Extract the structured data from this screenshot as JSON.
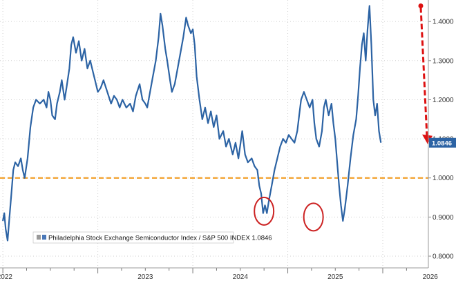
{
  "chart_data": {
    "type": "line",
    "title": "",
    "xlabel": "",
    "ylabel": "",
    "x_tick_labels": [
      "2022",
      "2023",
      "2024",
      "2025",
      "2026"
    ],
    "y_tick_labels": [
      "0.8000",
      "0.9000",
      "1.0000",
      "1.1000",
      "1.2000",
      "1.3000",
      "1.4000"
    ],
    "y_ticks": [
      0.8,
      0.9,
      1.0,
      1.1,
      1.2,
      1.3,
      1.4
    ],
    "ylim": [
      0.77,
      1.455
    ],
    "xlim": [
      2021.97,
      2026.48
    ],
    "grid": true,
    "reference_line": {
      "y": 1.0
    },
    "legend": {
      "placement": "bottom-left",
      "series_label": "Philadelphia Stock Exchange Semiconductor Index / S&P 500 INDEX",
      "value": "1.0846"
    },
    "last_value_label": "1.0846",
    "highlighted_lows": [
      {
        "x": 2024.75,
        "y": 0.915
      },
      {
        "x": 2025.27,
        "y": 0.9
      }
    ],
    "arrow": {
      "x": 2026.4,
      "y_start": 1.44,
      "y_end": 1.09
    },
    "series": [
      {
        "values": [
          [
            2022.0,
            0.89
          ],
          [
            2022.015,
            0.91
          ],
          [
            2022.03,
            0.87
          ],
          [
            2022.05,
            0.84
          ],
          [
            2022.07,
            0.9
          ],
          [
            2022.09,
            0.96
          ],
          [
            2022.11,
            1.02
          ],
          [
            2022.13,
            1.04
          ],
          [
            2022.16,
            1.03
          ],
          [
            2022.19,
            1.05
          ],
          [
            2022.21,
            1.02
          ],
          [
            2022.23,
            1.0
          ],
          [
            2022.26,
            1.05
          ],
          [
            2022.29,
            1.13
          ],
          [
            2022.32,
            1.18
          ],
          [
            2022.35,
            1.2
          ],
          [
            2022.39,
            1.19
          ],
          [
            2022.43,
            1.2
          ],
          [
            2022.46,
            1.18
          ],
          [
            2022.48,
            1.22
          ],
          [
            2022.5,
            1.2
          ],
          [
            2022.52,
            1.16
          ],
          [
            2022.55,
            1.15
          ],
          [
            2022.57,
            1.19
          ],
          [
            2022.6,
            1.22
          ],
          [
            2022.62,
            1.25
          ],
          [
            2022.65,
            1.2
          ],
          [
            2022.67,
            1.23
          ],
          [
            2022.7,
            1.28
          ],
          [
            2022.72,
            1.34
          ],
          [
            2022.74,
            1.36
          ],
          [
            2022.77,
            1.32
          ],
          [
            2022.8,
            1.35
          ],
          [
            2022.83,
            1.3
          ],
          [
            2022.86,
            1.33
          ],
          [
            2022.89,
            1.28
          ],
          [
            2022.92,
            1.3
          ],
          [
            2022.95,
            1.27
          ],
          [
            2022.97,
            1.25
          ],
          [
            2023.0,
            1.22
          ],
          [
            2023.03,
            1.23
          ],
          [
            2023.06,
            1.25
          ],
          [
            2023.1,
            1.22
          ],
          [
            2023.14,
            1.19
          ],
          [
            2023.17,
            1.21
          ],
          [
            2023.2,
            1.2
          ],
          [
            2023.23,
            1.18
          ],
          [
            2023.26,
            1.2
          ],
          [
            2023.3,
            1.18
          ],
          [
            2023.34,
            1.19
          ],
          [
            2023.37,
            1.17
          ],
          [
            2023.4,
            1.21
          ],
          [
            2023.44,
            1.24
          ],
          [
            2023.47,
            1.2
          ],
          [
            2023.5,
            1.19
          ],
          [
            2023.52,
            1.18
          ],
          [
            2023.55,
            1.22
          ],
          [
            2023.58,
            1.26
          ],
          [
            2023.61,
            1.3
          ],
          [
            2023.64,
            1.36
          ],
          [
            2023.66,
            1.42
          ],
          [
            2023.68,
            1.39
          ],
          [
            2023.71,
            1.33
          ],
          [
            2023.73,
            1.3
          ],
          [
            2023.76,
            1.25
          ],
          [
            2023.78,
            1.22
          ],
          [
            2023.81,
            1.24
          ],
          [
            2023.84,
            1.28
          ],
          [
            2023.87,
            1.32
          ],
          [
            2023.9,
            1.36
          ],
          [
            2023.93,
            1.41
          ],
          [
            2023.95,
            1.39
          ],
          [
            2023.98,
            1.37
          ],
          [
            2024.0,
            1.38
          ],
          [
            2024.02,
            1.34
          ],
          [
            2024.04,
            1.26
          ],
          [
            2024.07,
            1.2
          ],
          [
            2024.1,
            1.15
          ],
          [
            2024.13,
            1.18
          ],
          [
            2024.16,
            1.14
          ],
          [
            2024.19,
            1.17
          ],
          [
            2024.22,
            1.13
          ],
          [
            2024.25,
            1.16
          ],
          [
            2024.28,
            1.1
          ],
          [
            2024.32,
            1.12
          ],
          [
            2024.35,
            1.08
          ],
          [
            2024.38,
            1.1
          ],
          [
            2024.42,
            1.06
          ],
          [
            2024.45,
            1.09
          ],
          [
            2024.48,
            1.05
          ],
          [
            2024.52,
            1.12
          ],
          [
            2024.55,
            1.06
          ],
          [
            2024.58,
            1.04
          ],
          [
            2024.62,
            1.05
          ],
          [
            2024.65,
            1.03
          ],
          [
            2024.68,
            1.02
          ],
          [
            2024.7,
            0.98
          ],
          [
            2024.72,
            0.96
          ],
          [
            2024.74,
            0.91
          ],
          [
            2024.76,
            0.93
          ],
          [
            2024.78,
            0.91
          ],
          [
            2024.8,
            0.94
          ],
          [
            2024.83,
            0.98
          ],
          [
            2024.86,
            1.02
          ],
          [
            2024.89,
            1.05
          ],
          [
            2024.92,
            1.08
          ],
          [
            2024.95,
            1.1
          ],
          [
            2024.98,
            1.09
          ],
          [
            2025.01,
            1.11
          ],
          [
            2025.04,
            1.1
          ],
          [
            2025.07,
            1.09
          ],
          [
            2025.1,
            1.12
          ],
          [
            2025.12,
            1.16
          ],
          [
            2025.14,
            1.2
          ],
          [
            2025.17,
            1.22
          ],
          [
            2025.2,
            1.2
          ],
          [
            2025.23,
            1.18
          ],
          [
            2025.26,
            1.2
          ],
          [
            2025.28,
            1.14
          ],
          [
            2025.3,
            1.1
          ],
          [
            2025.33,
            1.08
          ],
          [
            2025.36,
            1.12
          ],
          [
            2025.38,
            1.18
          ],
          [
            2025.4,
            1.2
          ],
          [
            2025.43,
            1.16
          ],
          [
            2025.46,
            1.19
          ],
          [
            2025.48,
            1.14
          ],
          [
            2025.5,
            1.1
          ],
          [
            2025.52,
            1.04
          ],
          [
            2025.54,
            0.98
          ],
          [
            2025.56,
            0.93
          ],
          [
            2025.58,
            0.89
          ],
          [
            2025.6,
            0.92
          ],
          [
            2025.63,
            0.98
          ],
          [
            2025.66,
            1.05
          ],
          [
            2025.69,
            1.11
          ],
          [
            2025.72,
            1.15
          ],
          [
            2025.74,
            1.21
          ],
          [
            2025.76,
            1.28
          ],
          [
            2025.78,
            1.34
          ],
          [
            2025.8,
            1.37
          ],
          [
            2025.82,
            1.3
          ],
          [
            2025.84,
            1.38
          ],
          [
            2025.86,
            1.44
          ],
          [
            2025.88,
            1.34
          ],
          [
            2025.9,
            1.2
          ],
          [
            2025.92,
            1.16
          ],
          [
            2025.94,
            1.19
          ],
          [
            2025.96,
            1.12
          ],
          [
            2025.98,
            1.09
          ]
        ]
      }
    ],
    "colors": {
      "line": "#2c63a4",
      "reference_line": "#f3a02b",
      "circle": "#cc2222",
      "arrow": "#dd1111",
      "last_value_bg": "#2c63a4",
      "grid": "#cfcfcf",
      "legend_swatch": "#4a78b8"
    }
  }
}
